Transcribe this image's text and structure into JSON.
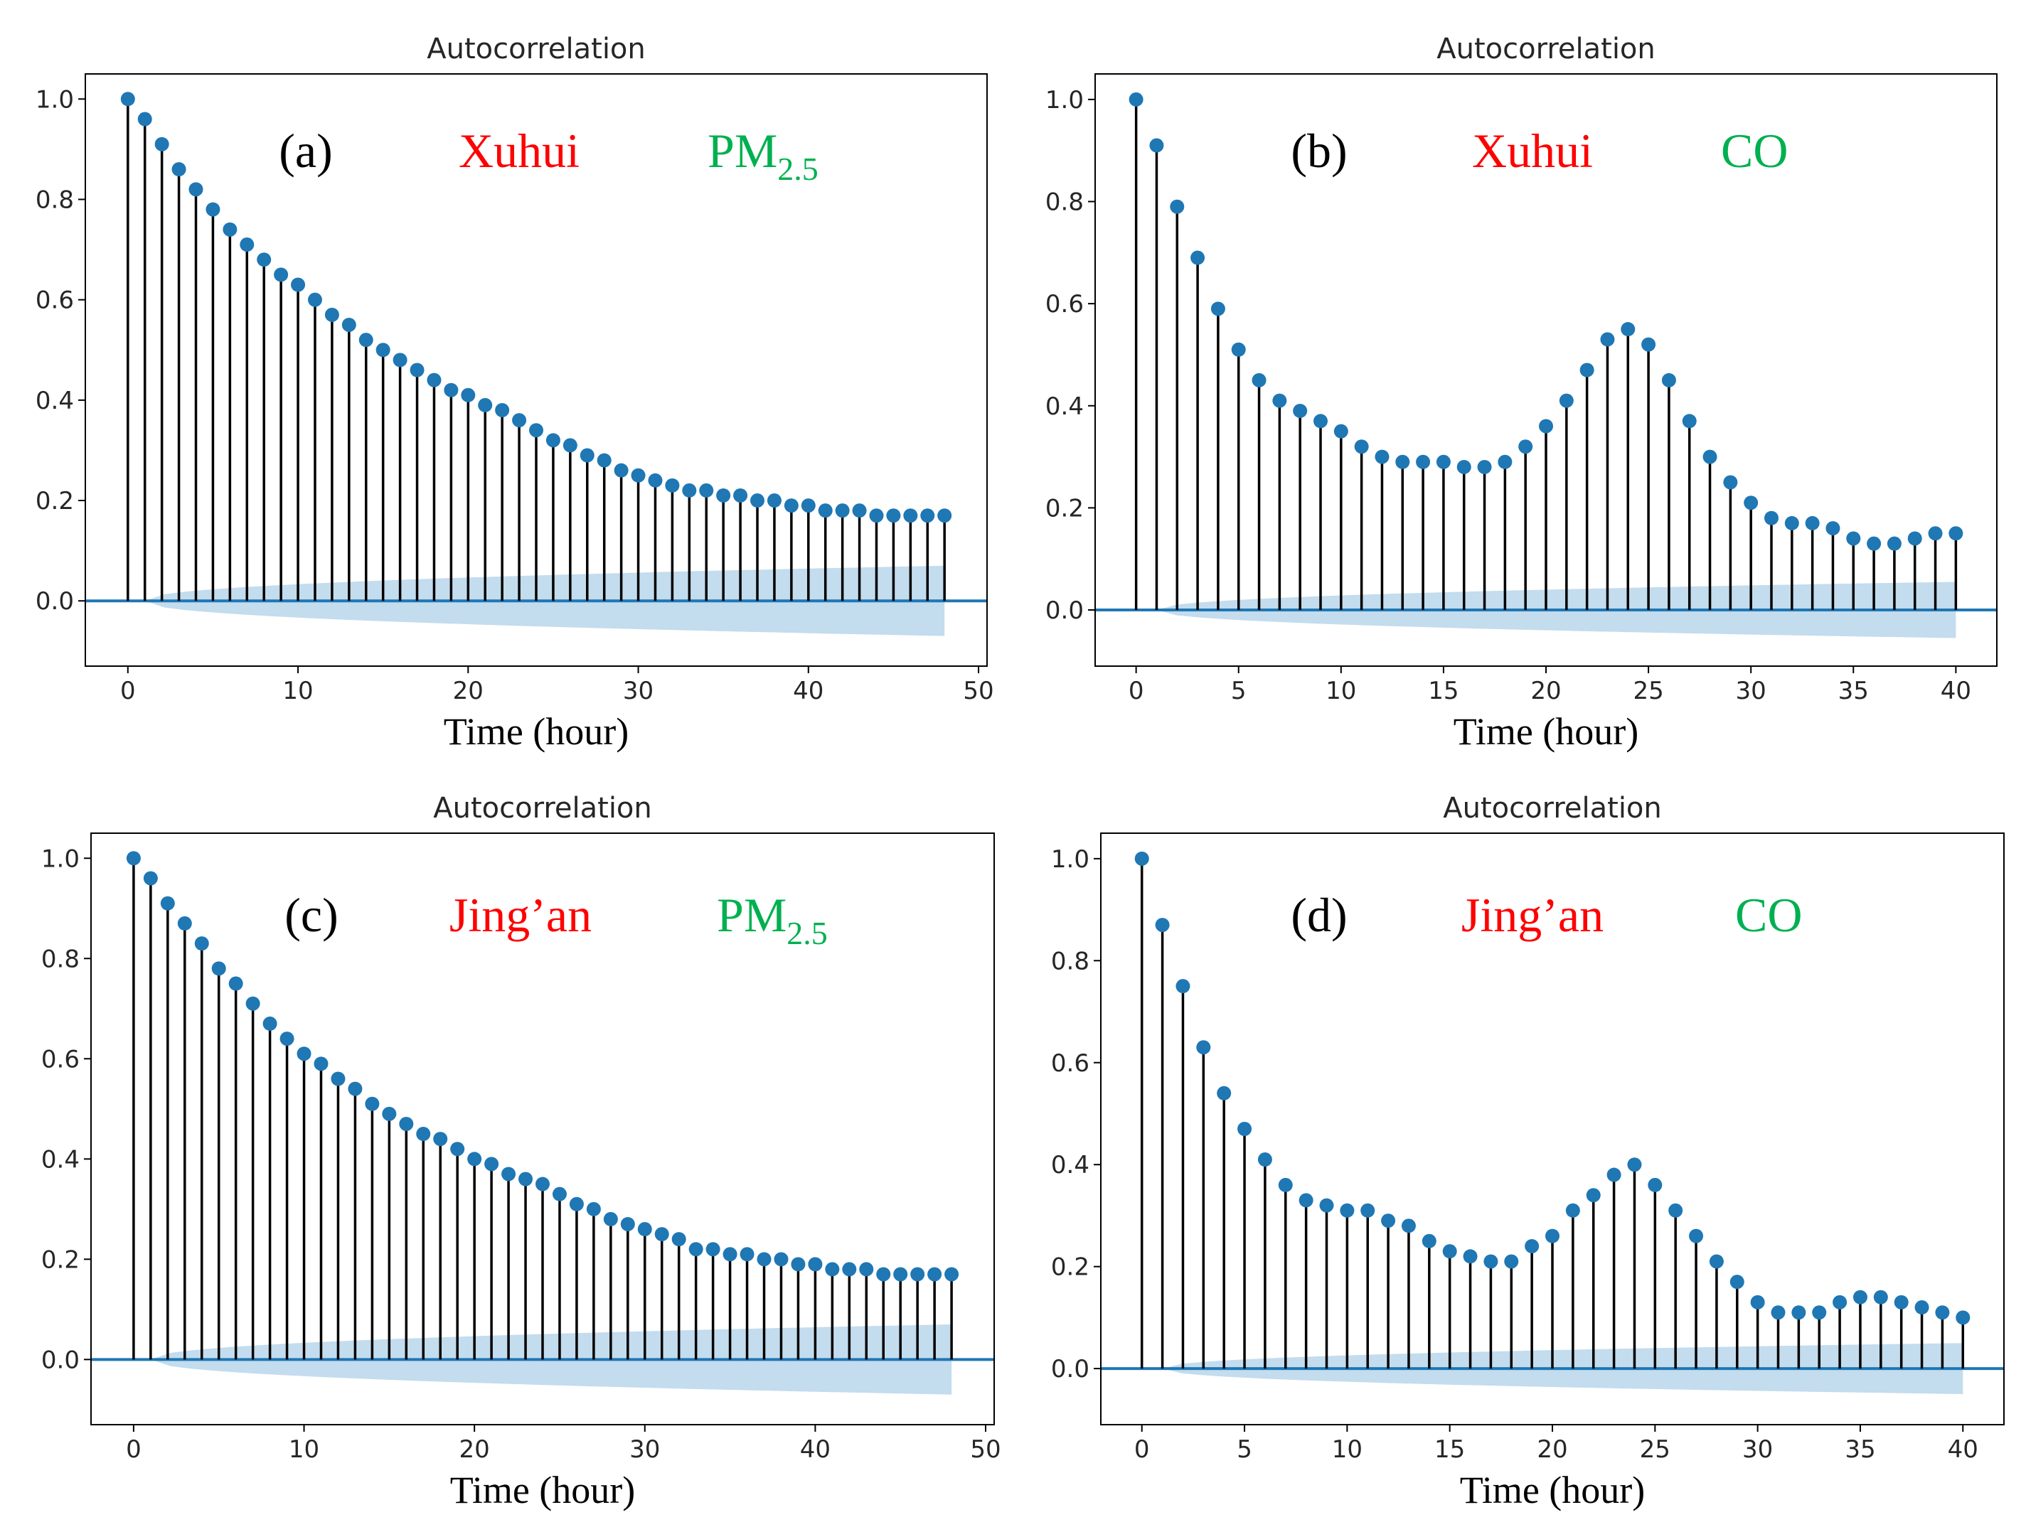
{
  "colors": {
    "stem": "#000000",
    "marker": "#1f77b4",
    "baseline": "#1f77b4",
    "confidence_band": "#c3dcee",
    "station_label": "#ff0000",
    "pollutant_label": "#00b050"
  },
  "chart_data": [
    {
      "id": "a",
      "type": "stem",
      "title": "Autocorrelation",
      "xlabel": "Time (hour)",
      "ylabel": "",
      "panel_label": "(a)",
      "station": "Xuhui",
      "pollutant": "PM",
      "pollutant_sub": "2.5",
      "xlim": [
        -2.5,
        50.5
      ],
      "ylim": [
        -0.13,
        1.05
      ],
      "xticks": [
        0,
        10,
        20,
        30,
        40,
        50
      ],
      "yticks": [
        0.0,
        0.2,
        0.4,
        0.6,
        0.8,
        1.0
      ],
      "xtick_labels": [
        "0",
        "10",
        "20",
        "30",
        "40",
        "50"
      ],
      "ytick_labels": [
        "0.0",
        "0.2",
        "0.4",
        "0.6",
        "0.8",
        "1.0"
      ],
      "grid": false,
      "confidence_end": 0.07,
      "lags": [
        0,
        1,
        2,
        3,
        4,
        5,
        6,
        7,
        8,
        9,
        10,
        11,
        12,
        13,
        14,
        15,
        16,
        17,
        18,
        19,
        20,
        21,
        22,
        23,
        24,
        25,
        26,
        27,
        28,
        29,
        30,
        31,
        32,
        33,
        34,
        35,
        36,
        37,
        38,
        39,
        40,
        41,
        42,
        43,
        44,
        45,
        46,
        47,
        48
      ],
      "values": [
        1.0,
        0.96,
        0.91,
        0.86,
        0.82,
        0.78,
        0.74,
        0.71,
        0.68,
        0.65,
        0.63,
        0.6,
        0.57,
        0.55,
        0.52,
        0.5,
        0.48,
        0.46,
        0.44,
        0.42,
        0.41,
        0.39,
        0.38,
        0.36,
        0.34,
        0.32,
        0.31,
        0.29,
        0.28,
        0.26,
        0.25,
        0.24,
        0.23,
        0.22,
        0.22,
        0.21,
        0.21,
        0.2,
        0.2,
        0.19,
        0.19,
        0.18,
        0.18,
        0.18,
        0.17,
        0.17,
        0.17,
        0.17,
        0.17
      ]
    },
    {
      "id": "b",
      "type": "stem",
      "title": "Autocorrelation",
      "xlabel": "Time (hour)",
      "ylabel": "",
      "panel_label": "(b)",
      "station": "Xuhui",
      "pollutant": "CO",
      "pollutant_sub": "",
      "xlim": [
        -2,
        42
      ],
      "ylim": [
        -0.11,
        1.05
      ],
      "xticks": [
        0,
        5,
        10,
        15,
        20,
        25,
        30,
        35,
        40
      ],
      "yticks": [
        0.0,
        0.2,
        0.4,
        0.6,
        0.8,
        1.0
      ],
      "xtick_labels": [
        "0",
        "5",
        "10",
        "15",
        "20",
        "25",
        "30",
        "35",
        "40"
      ],
      "ytick_labels": [
        "0.0",
        "0.2",
        "0.4",
        "0.6",
        "0.8",
        "1.0"
      ],
      "grid": false,
      "confidence_end": 0.055,
      "lags": [
        0,
        1,
        2,
        3,
        4,
        5,
        6,
        7,
        8,
        9,
        10,
        11,
        12,
        13,
        14,
        15,
        16,
        17,
        18,
        19,
        20,
        21,
        22,
        23,
        24,
        25,
        26,
        27,
        28,
        29,
        30,
        31,
        32,
        33,
        34,
        35,
        36,
        37,
        38,
        39,
        40
      ],
      "values": [
        1.0,
        0.91,
        0.79,
        0.69,
        0.59,
        0.51,
        0.45,
        0.41,
        0.39,
        0.37,
        0.35,
        0.32,
        0.3,
        0.29,
        0.29,
        0.29,
        0.28,
        0.28,
        0.29,
        0.32,
        0.36,
        0.41,
        0.47,
        0.53,
        0.55,
        0.52,
        0.45,
        0.37,
        0.3,
        0.25,
        0.21,
        0.18,
        0.17,
        0.17,
        0.16,
        0.14,
        0.13,
        0.13,
        0.14,
        0.15,
        0.15
      ]
    },
    {
      "id": "c",
      "type": "stem",
      "title": "Autocorrelation",
      "xlabel": "Time (hour)",
      "ylabel": "",
      "panel_label": "(c)",
      "station": "Jing’an",
      "pollutant": "PM",
      "pollutant_sub": "2.5",
      "xlim": [
        -2.5,
        50.5
      ],
      "ylim": [
        -0.13,
        1.05
      ],
      "xticks": [
        0,
        10,
        20,
        30,
        40,
        50
      ],
      "yticks": [
        0.0,
        0.2,
        0.4,
        0.6,
        0.8,
        1.0
      ],
      "xtick_labels": [
        "0",
        "10",
        "20",
        "30",
        "40",
        "50"
      ],
      "ytick_labels": [
        "0.0",
        "0.2",
        "0.4",
        "0.6",
        "0.8",
        "1.0"
      ],
      "grid": false,
      "confidence_end": 0.07,
      "lags": [
        0,
        1,
        2,
        3,
        4,
        5,
        6,
        7,
        8,
        9,
        10,
        11,
        12,
        13,
        14,
        15,
        16,
        17,
        18,
        19,
        20,
        21,
        22,
        23,
        24,
        25,
        26,
        27,
        28,
        29,
        30,
        31,
        32,
        33,
        34,
        35,
        36,
        37,
        38,
        39,
        40,
        41,
        42,
        43,
        44,
        45,
        46,
        47,
        48
      ],
      "values": [
        1.0,
        0.96,
        0.91,
        0.87,
        0.83,
        0.78,
        0.75,
        0.71,
        0.67,
        0.64,
        0.61,
        0.59,
        0.56,
        0.54,
        0.51,
        0.49,
        0.47,
        0.45,
        0.44,
        0.42,
        0.4,
        0.39,
        0.37,
        0.36,
        0.35,
        0.33,
        0.31,
        0.3,
        0.28,
        0.27,
        0.26,
        0.25,
        0.24,
        0.22,
        0.22,
        0.21,
        0.21,
        0.2,
        0.2,
        0.19,
        0.19,
        0.18,
        0.18,
        0.18,
        0.17,
        0.17,
        0.17,
        0.17,
        0.17
      ]
    },
    {
      "id": "d",
      "type": "stem",
      "title": "Autocorrelation",
      "xlabel": "Time (hour)",
      "ylabel": "",
      "panel_label": "(d)",
      "station": "Jing’an",
      "pollutant": "CO",
      "pollutant_sub": "",
      "xlim": [
        -2,
        42
      ],
      "ylim": [
        -0.11,
        1.05
      ],
      "xticks": [
        0,
        5,
        10,
        15,
        20,
        25,
        30,
        35,
        40
      ],
      "yticks": [
        0.0,
        0.2,
        0.4,
        0.6,
        0.8,
        1.0
      ],
      "xtick_labels": [
        "0",
        "5",
        "10",
        "15",
        "20",
        "25",
        "30",
        "35",
        "40"
      ],
      "ytick_labels": [
        "0.0",
        "0.2",
        "0.4",
        "0.6",
        "0.8",
        "1.0"
      ],
      "grid": false,
      "confidence_end": 0.05,
      "lags": [
        0,
        1,
        2,
        3,
        4,
        5,
        6,
        7,
        8,
        9,
        10,
        11,
        12,
        13,
        14,
        15,
        16,
        17,
        18,
        19,
        20,
        21,
        22,
        23,
        24,
        25,
        26,
        27,
        28,
        29,
        30,
        31,
        32,
        33,
        34,
        35,
        36,
        37,
        38,
        39,
        40
      ],
      "values": [
        1.0,
        0.87,
        0.75,
        0.63,
        0.54,
        0.47,
        0.41,
        0.36,
        0.33,
        0.32,
        0.31,
        0.31,
        0.29,
        0.28,
        0.25,
        0.23,
        0.22,
        0.21,
        0.21,
        0.24,
        0.26,
        0.31,
        0.34,
        0.38,
        0.4,
        0.36,
        0.31,
        0.26,
        0.21,
        0.17,
        0.13,
        0.11,
        0.11,
        0.11,
        0.13,
        0.14,
        0.14,
        0.13,
        0.12,
        0.11,
        0.1
      ]
    }
  ]
}
